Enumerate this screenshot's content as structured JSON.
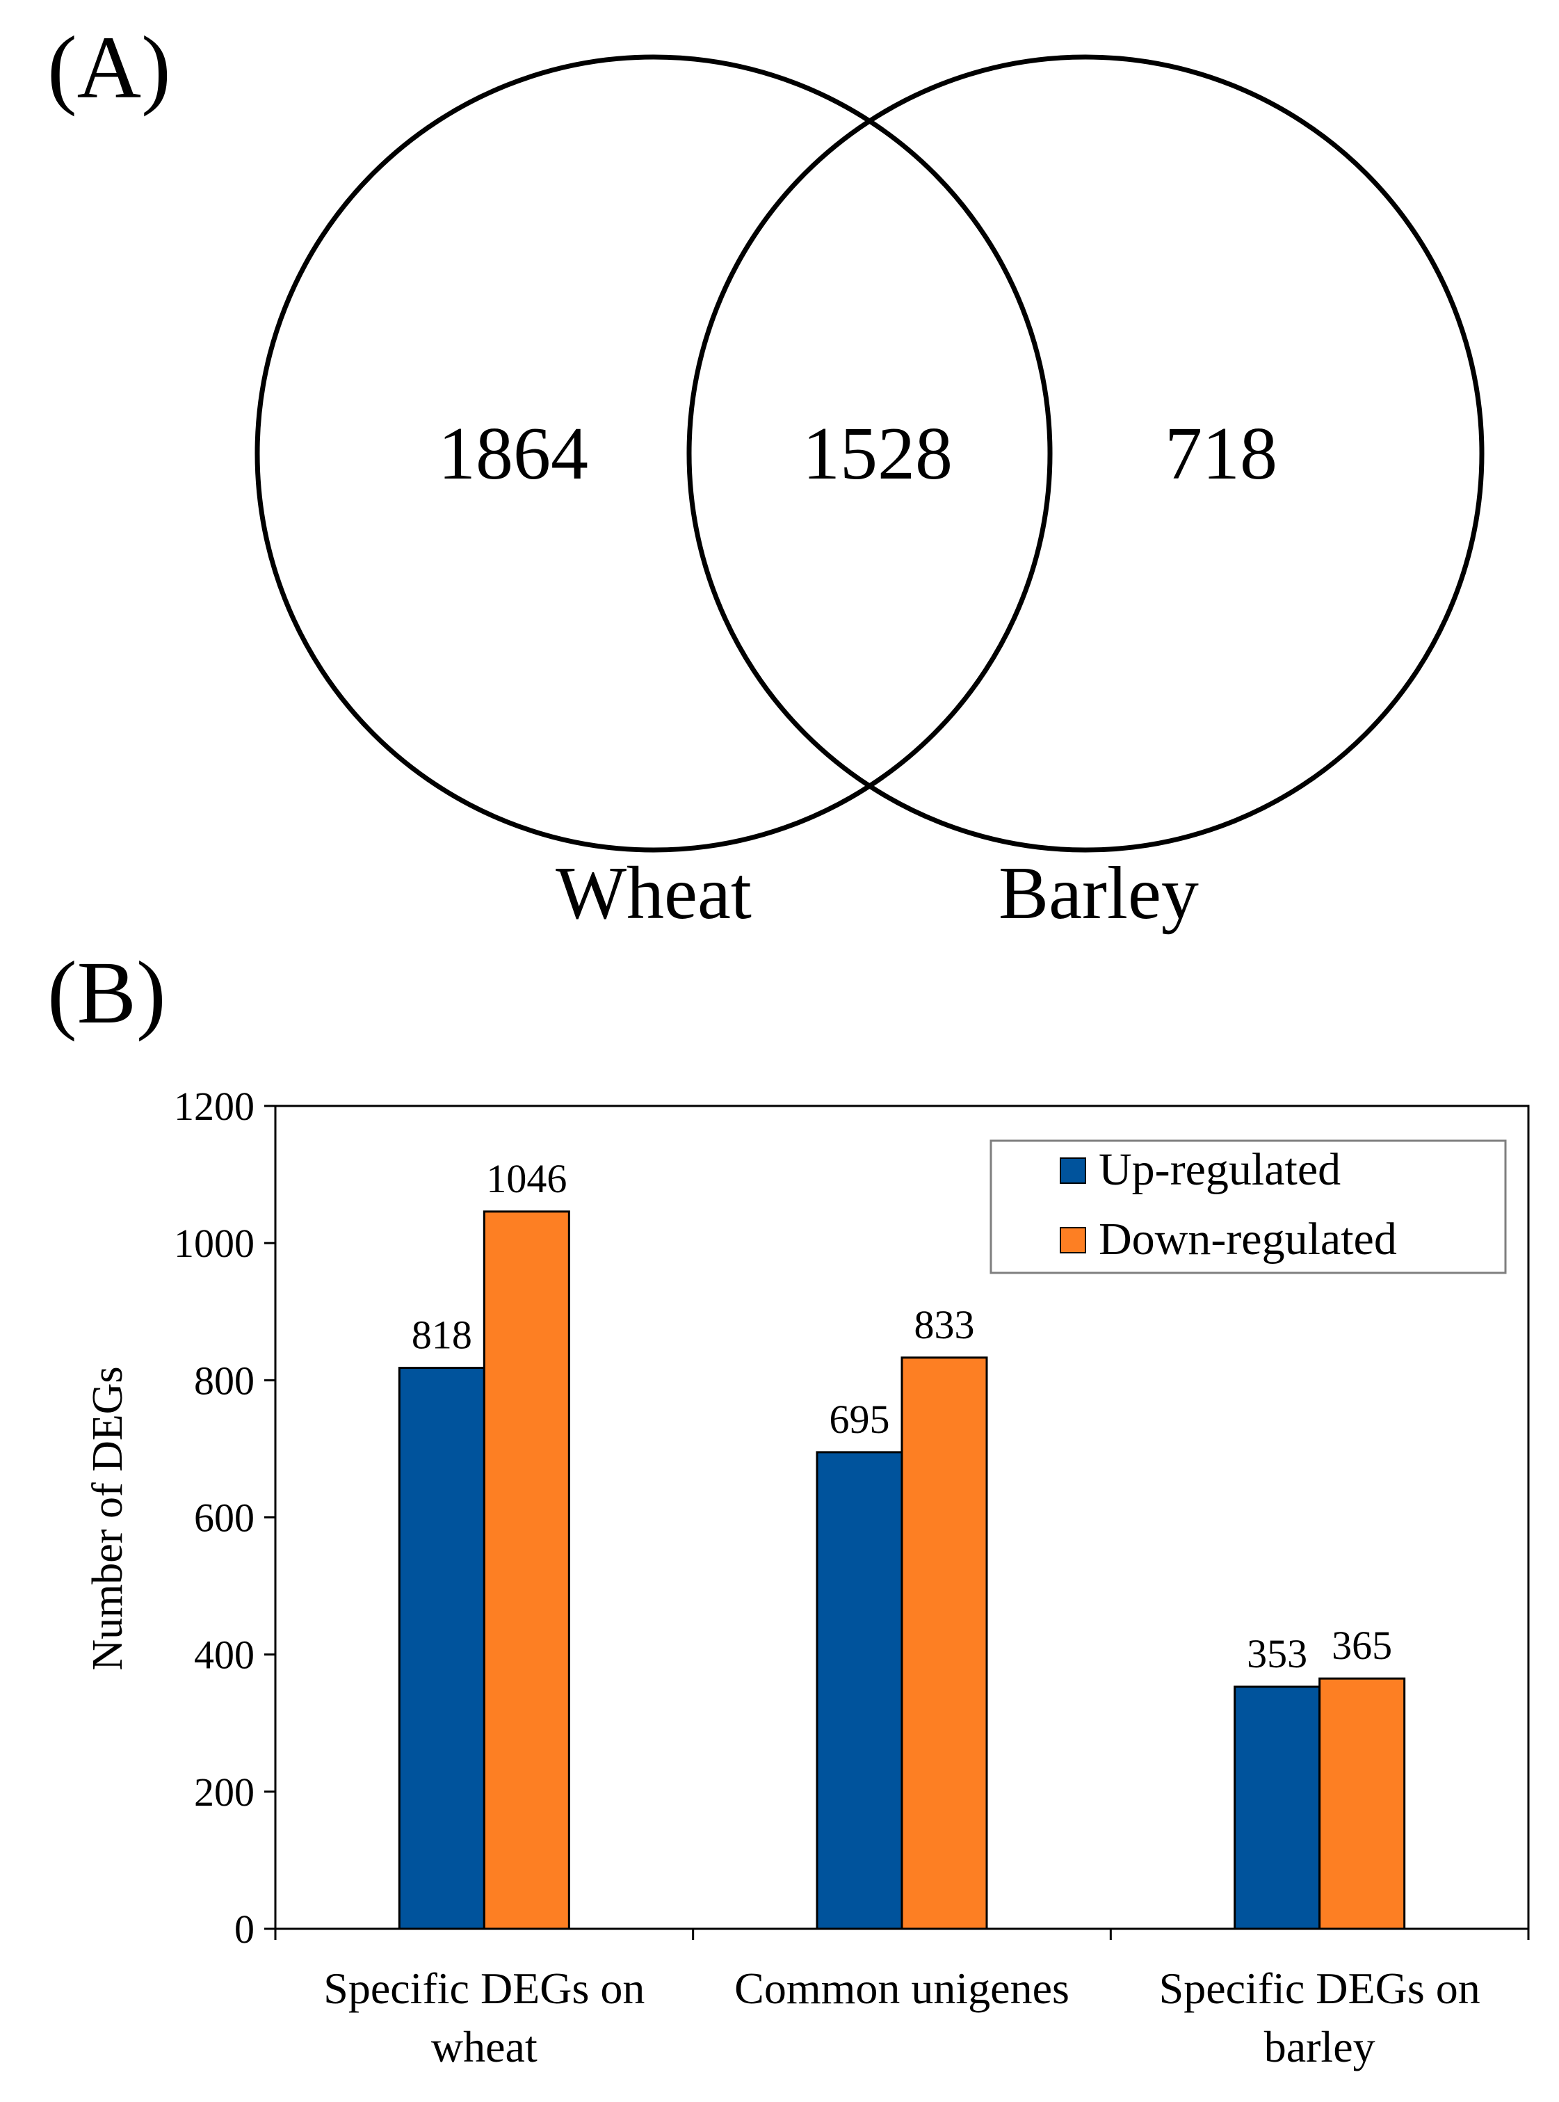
{
  "panel_a": {
    "label": "(A)",
    "sets": [
      {
        "name": "Wheat",
        "only_count": "1864"
      },
      {
        "name": "Barley",
        "only_count": "718"
      }
    ],
    "intersection_count": "1528"
  },
  "chart_data": {
    "type": "bar",
    "panel_label": "(B)",
    "title": "",
    "xlabel": "",
    "ylabel": "Number of DEGs",
    "ylim": [
      0,
      1200
    ],
    "yticks": [
      0,
      200,
      400,
      600,
      800,
      1000,
      1200
    ],
    "categories": [
      [
        "Specific DEGs on",
        "wheat"
      ],
      [
        "Common unigenes"
      ],
      [
        "Specific DEGs on",
        "barley"
      ]
    ],
    "series": [
      {
        "name": "Up-regulated",
        "color": "#00539c",
        "values": [
          818,
          695,
          353
        ]
      },
      {
        "name": "Down-regulated",
        "color": "#fd7f23",
        "values": [
          1046,
          833,
          365
        ]
      }
    ],
    "legend_position": "top-right",
    "grid": false
  }
}
